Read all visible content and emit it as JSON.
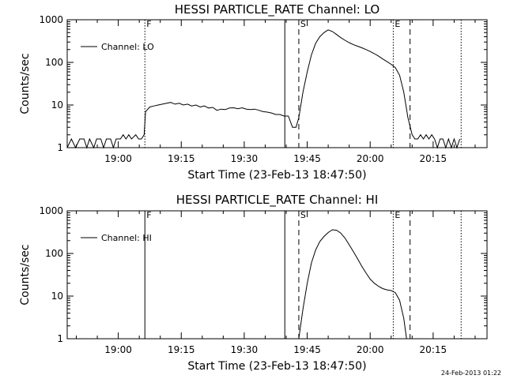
{
  "footer": {
    "timestamp": "24-Feb-2013 01:22"
  },
  "chart_data": [
    {
      "type": "line",
      "title": "HESSI PARTICLE_RATE Channel: LO",
      "xlabel": "Start Time (23-Feb-13 18:47:50)",
      "ylabel": "Counts/sec",
      "yscale": "log",
      "ylim": [
        1,
        1000
      ],
      "xlim": [
        "18:47:50",
        "20:27:50"
      ],
      "x_ticks": [
        "19:00",
        "19:15",
        "19:30",
        "19:45",
        "20:00",
        "20:15"
      ],
      "y_ticks": [
        "1",
        "10",
        "100",
        "1000"
      ],
      "legend": {
        "placement": "top-left",
        "entry": "Channel: LO"
      },
      "markers": [
        {
          "label": "F",
          "time": "19:06:20",
          "style": "dotted"
        },
        {
          "label": "",
          "time": "19:39:40",
          "style": "solid"
        },
        {
          "label": "S",
          "time": "19:43:00",
          "style": "dashed"
        },
        {
          "label": "E",
          "time": "20:05:30",
          "style": "dotted"
        },
        {
          "label": "",
          "time": "20:09:30",
          "style": "dashed"
        },
        {
          "label": "",
          "time": "20:21:40",
          "style": "dotted"
        }
      ],
      "series": [
        {
          "segments": [
            [
              [
                "18:47:50",
                1
              ],
              [
                "18:48:50",
                1.6
              ],
              [
                "18:49:50",
                1
              ],
              [
                "18:50:50",
                1.6
              ],
              [
                "18:51:50",
                1.6
              ],
              [
                "18:52:30",
                1
              ],
              [
                "18:53:10",
                1.6
              ],
              [
                "18:54:10",
                1
              ],
              [
                "18:54:50",
                1.6
              ],
              [
                "18:55:50",
                1.6
              ],
              [
                "18:56:30",
                1
              ],
              [
                "18:57:10",
                1.6
              ],
              [
                "18:58:10",
                1.6
              ],
              [
                "18:58:50",
                1
              ],
              [
                "18:59:30",
                1.6
              ],
              [
                "19:00:30",
                1.6
              ],
              [
                "19:01:10",
                2
              ],
              [
                "19:01:50",
                1.6
              ],
              [
                "19:02:30",
                2
              ],
              [
                "19:03:10",
                1.6
              ],
              [
                "19:04:10",
                2
              ],
              [
                "19:04:50",
                1.6
              ],
              [
                "19:05:30",
                1.6
              ],
              [
                "19:06:10",
                2
              ],
              [
                "19:06:30",
                7
              ],
              [
                "19:07:30",
                9
              ],
              [
                "19:08:30",
                9.5
              ],
              [
                "19:09:30",
                10
              ],
              [
                "19:10:30",
                10.5
              ],
              [
                "19:11:30",
                11
              ],
              [
                "19:12:30",
                11.5
              ],
              [
                "19:13:30",
                10.5
              ],
              [
                "19:14:30",
                11
              ],
              [
                "19:15:30",
                10
              ],
              [
                "19:16:30",
                10.5
              ],
              [
                "19:17:30",
                9.5
              ],
              [
                "19:18:30",
                10
              ],
              [
                "19:19:30",
                9
              ],
              [
                "19:20:30",
                9.5
              ],
              [
                "19:21:30",
                8.5
              ],
              [
                "19:22:30",
                8.8
              ],
              [
                "19:23:30",
                7.5
              ],
              [
                "19:24:30",
                8
              ],
              [
                "19:25:30",
                7.8
              ],
              [
                "19:26:30",
                8.5
              ],
              [
                "19:27:30",
                8.6
              ],
              [
                "19:28:30",
                8.2
              ],
              [
                "19:29:30",
                8.6
              ],
              [
                "19:30:30",
                8
              ],
              [
                "19:31:30",
                7.8
              ],
              [
                "19:32:30",
                8
              ],
              [
                "19:33:30",
                7.5
              ],
              [
                "19:34:30",
                7
              ],
              [
                "19:35:30",
                6.8
              ],
              [
                "19:36:30",
                6.5
              ],
              [
                "19:37:30",
                6
              ],
              [
                "19:38:30",
                6
              ],
              [
                "19:39:30",
                5.5
              ],
              [
                "19:40:30",
                5.5
              ],
              [
                "19:41:30",
                3
              ],
              [
                "19:42:20",
                3
              ],
              [
                "19:43:00",
                5
              ],
              [
                "19:44:00",
                20
              ],
              [
                "19:45:00",
                60
              ],
              [
                "19:46:00",
                150
              ],
              [
                "19:47:00",
                280
              ],
              [
                "19:48:00",
                400
              ],
              [
                "19:49:00",
                500
              ],
              [
                "19:50:00",
                580
              ],
              [
                "19:51:00",
                530
              ],
              [
                "19:52:00",
                450
              ],
              [
                "19:53:00",
                380
              ],
              [
                "19:54:00",
                330
              ],
              [
                "19:55:00",
                290
              ],
              [
                "19:56:00",
                260
              ],
              [
                "19:57:00",
                240
              ],
              [
                "19:58:00",
                220
              ],
              [
                "19:59:00",
                200
              ],
              [
                "20:00:00",
                180
              ],
              [
                "20:01:00",
                160
              ],
              [
                "20:02:00",
                140
              ],
              [
                "20:03:00",
                120
              ],
              [
                "20:04:00",
                105
              ],
              [
                "20:05:00",
                90
              ],
              [
                "20:06:00",
                75
              ],
              [
                "20:07:00",
                50
              ],
              [
                "20:08:00",
                20
              ],
              [
                "20:09:00",
                5
              ],
              [
                "20:10:00",
                2
              ],
              [
                "20:10:40",
                1.6
              ],
              [
                "20:11:20",
                1.6
              ],
              [
                "20:12:00",
                2
              ],
              [
                "20:12:40",
                1.6
              ],
              [
                "20:13:20",
                2
              ],
              [
                "20:14:00",
                1.6
              ],
              [
                "20:14:40",
                2
              ],
              [
                "20:15:20",
                1.6
              ],
              [
                "20:16:00",
                1
              ],
              [
                "20:16:40",
                1.6
              ],
              [
                "20:17:20",
                1.6
              ],
              [
                "20:18:00",
                1
              ],
              [
                "20:18:40",
                1.6
              ],
              [
                "20:19:20",
                1
              ],
              [
                "20:20:00",
                1.6
              ],
              [
                "20:20:40",
                1
              ],
              [
                "20:21:20",
                1.6
              ]
            ]
          ]
        }
      ]
    },
    {
      "type": "line",
      "title": "HESSI PARTICLE_RATE Channel: HI",
      "xlabel": "Start Time (23-Feb-13 18:47:50)",
      "ylabel": "Counts/sec",
      "yscale": "log",
      "ylim": [
        1,
        1000
      ],
      "xlim": [
        "18:47:50",
        "20:27:50"
      ],
      "x_ticks": [
        "19:00",
        "19:15",
        "19:30",
        "19:45",
        "20:00",
        "20:15"
      ],
      "y_ticks": [
        "1",
        "10",
        "100",
        "1000"
      ],
      "legend": {
        "placement": "top-left",
        "entry": "Channel: HI"
      },
      "markers": [
        {
          "label": "F",
          "time": "19:06:20",
          "style": "solid"
        },
        {
          "label": "",
          "time": "19:39:40",
          "style": "solid"
        },
        {
          "label": "S",
          "time": "19:43:00",
          "style": "dashed"
        },
        {
          "label": "E",
          "time": "20:05:30",
          "style": "dotted"
        },
        {
          "label": "",
          "time": "20:09:30",
          "style": "dashed"
        },
        {
          "label": "",
          "time": "20:21:40",
          "style": "dotted"
        }
      ],
      "series": [
        {
          "segments": [
            [
              [
                "19:43:00",
                1
              ],
              [
                "19:44:00",
                5
              ],
              [
                "19:45:00",
                20
              ],
              [
                "19:46:00",
                60
              ],
              [
                "19:47:00",
                120
              ],
              [
                "19:48:00",
                190
              ],
              [
                "19:49:00",
                250
              ],
              [
                "19:50:00",
                310
              ],
              [
                "19:51:00",
                360
              ],
              [
                "19:52:00",
                350
              ],
              [
                "19:53:00",
                300
              ],
              [
                "19:54:00",
                230
              ],
              [
                "19:55:00",
                160
              ],
              [
                "19:56:00",
                110
              ],
              [
                "19:57:00",
                75
              ],
              [
                "19:58:00",
                50
              ],
              [
                "19:59:00",
                35
              ],
              [
                "20:00:00",
                25
              ],
              [
                "20:01:00",
                20
              ],
              [
                "20:02:00",
                17
              ],
              [
                "20:03:00",
                15
              ],
              [
                "20:04:00",
                14
              ],
              [
                "20:05:00",
                13.5
              ],
              [
                "20:06:00",
                12
              ],
              [
                "20:07:00",
                8
              ],
              [
                "20:08:00",
                3
              ],
              [
                "20:08:40",
                1
              ]
            ]
          ]
        }
      ]
    }
  ]
}
